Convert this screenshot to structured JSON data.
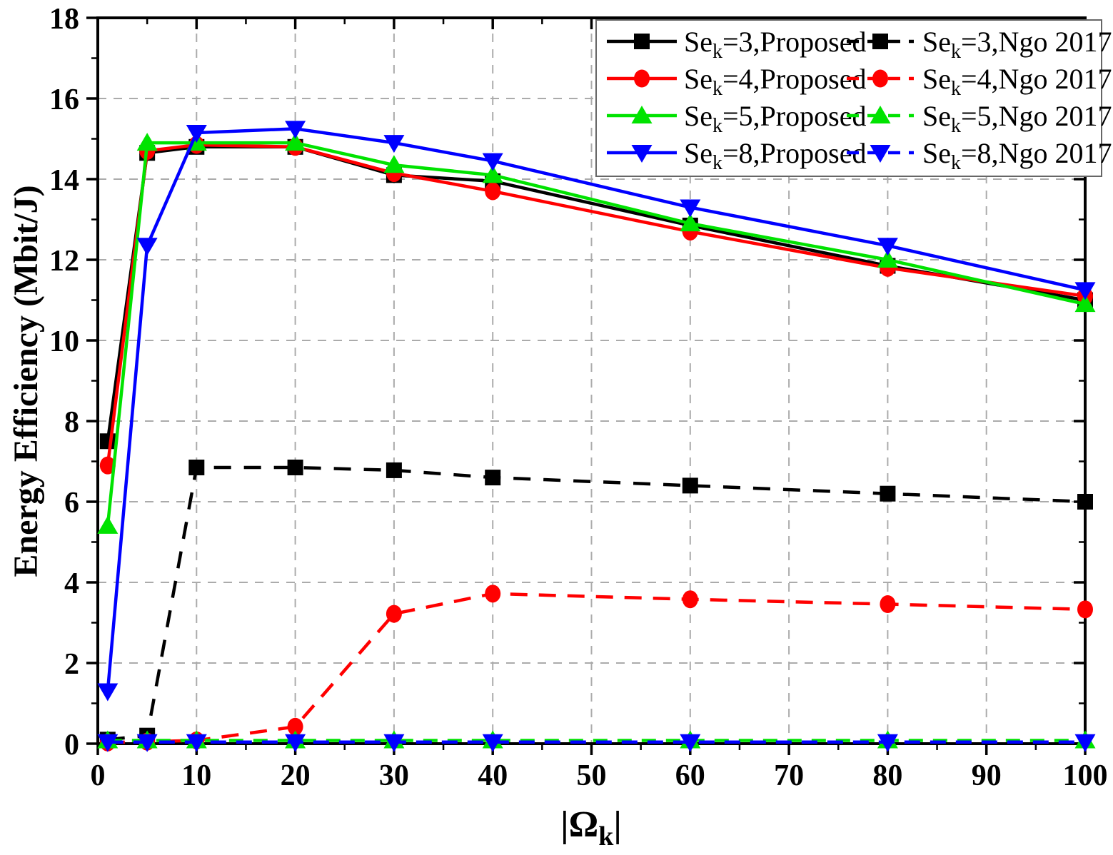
{
  "chart_data": {
    "type": "line",
    "title": "",
    "ylabel": "Energy Efficiency (Mbit/J)",
    "xlabel": {
      "pre": "|Ω",
      "sub": "k",
      "post": "|"
    },
    "xlim": [
      0,
      100
    ],
    "ylim": [
      0,
      18
    ],
    "x_major_ticks": [
      0,
      10,
      20,
      30,
      40,
      50,
      60,
      70,
      80,
      90,
      100
    ],
    "x_minor_step": 5,
    "y_major_ticks": [
      0,
      2,
      4,
      6,
      8,
      10,
      12,
      14,
      16,
      18
    ],
    "y_minor_step": 1,
    "grid": "dashed gray lines at every major tick",
    "legend_position": "top-right inside plot, 2 columns (Proposed | Ngo 2017)",
    "x": [
      1,
      5,
      10,
      20,
      30,
      40,
      60,
      80,
      100
    ],
    "series": [
      {
        "label": {
          "pre": "Se",
          "sub": "k",
          "post": "=3,Proposed"
        },
        "color": "#000000",
        "marker": "square",
        "line": "solid",
        "values": [
          7.5,
          14.65,
          14.8,
          14.8,
          14.1,
          13.95,
          12.85,
          11.85,
          11.0
        ]
      },
      {
        "label": {
          "pre": "Se",
          "sub": "k",
          "post": "=4,Proposed"
        },
        "color": "#ff0000",
        "marker": "circle",
        "line": "solid",
        "values": [
          6.9,
          14.7,
          14.85,
          14.8,
          14.15,
          13.7,
          12.7,
          11.8,
          11.1
        ]
      },
      {
        "label": {
          "pre": "Se",
          "sub": "k",
          "post": "=5,Proposed"
        },
        "color": "#00e300",
        "marker": "triangle-up",
        "line": "solid",
        "values": [
          5.4,
          14.9,
          14.9,
          14.9,
          14.35,
          14.1,
          12.9,
          12.0,
          10.9
        ]
      },
      {
        "label": {
          "pre": "Se",
          "sub": "k",
          "post": "=8,Proposed"
        },
        "color": "#0000ff",
        "marker": "triangle-down",
        "line": "solid",
        "values": [
          1.3,
          12.35,
          15.15,
          15.25,
          14.9,
          14.45,
          13.3,
          12.35,
          11.25
        ]
      },
      {
        "label": {
          "pre": "Se",
          "sub": "k",
          "post": "=3,Ngo 2017"
        },
        "color": "#000000",
        "marker": "square",
        "line": "dashed",
        "values": [
          0.1,
          0.2,
          6.85,
          6.85,
          6.78,
          6.6,
          6.4,
          6.2,
          6.0
        ]
      },
      {
        "label": {
          "pre": "Se",
          "sub": "k",
          "post": "=4,Ngo 2017"
        },
        "color": "#ff0000",
        "marker": "circle",
        "line": "dashed",
        "values": [
          0.03,
          0.05,
          0.08,
          0.42,
          3.22,
          3.72,
          3.58,
          3.46,
          3.33
        ]
      },
      {
        "label": {
          "pre": "Se",
          "sub": "k",
          "post": "=5,Ngo 2017"
        },
        "color": "#00e300",
        "marker": "triangle-up",
        "line": "dashed",
        "values": [
          0.08,
          0.08,
          0.08,
          0.08,
          0.08,
          0.08,
          0.08,
          0.08,
          0.08
        ]
      },
      {
        "label": {
          "pre": "Se",
          "sub": "k",
          "post": "=8,Ngo 2017"
        },
        "color": "#0000ff",
        "marker": "triangle-down",
        "line": "dashed",
        "values": [
          0.04,
          0.04,
          0.04,
          0.04,
          0.04,
          0.04,
          0.04,
          0.04,
          0.04
        ]
      }
    ]
  },
  "colors": {
    "background": "#ffffff",
    "frame": "#000000",
    "grid": "#ababab",
    "legend_border": "#666666",
    "legend_background": "#ffffff",
    "series_black": "#000000",
    "series_red": "#ff0000",
    "series_green": "#00e300",
    "series_blue": "#0000ff"
  }
}
